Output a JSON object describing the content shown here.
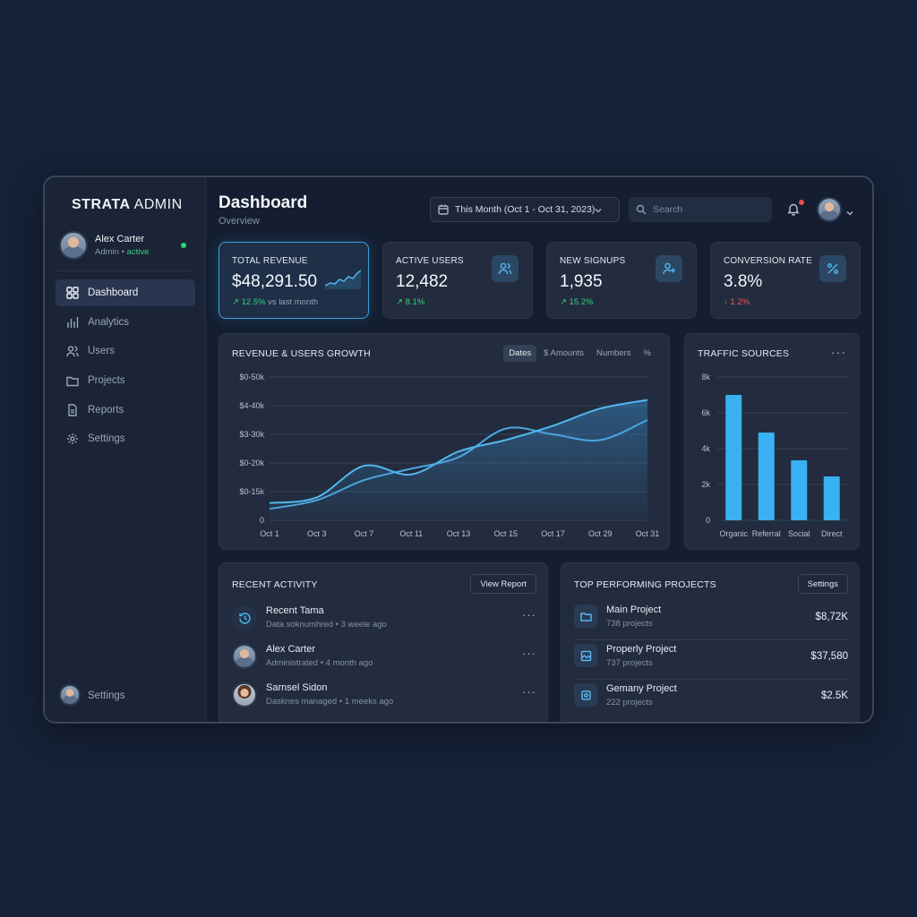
{
  "sidebar": {
    "brand_bold": "STRATA",
    "brand_rest": " ADMIN",
    "user": {
      "name": "Alex Carter",
      "role": "Admin",
      "status": "active"
    },
    "items": [
      {
        "label": "Dashboard",
        "icon": "grid-icon",
        "active": true
      },
      {
        "label": "Analytics",
        "icon": "analytics-icon",
        "active": false
      },
      {
        "label": "Users",
        "icon": "users-icon",
        "active": false
      },
      {
        "label": "Projects",
        "icon": "folder-icon",
        "active": false
      },
      {
        "label": "Reports",
        "icon": "document-icon",
        "active": false
      },
      {
        "label": "Settings",
        "icon": "gear-icon",
        "active": false
      }
    ],
    "bottom_label": "Settings"
  },
  "header": {
    "title": "Dashboard",
    "subtitle": "Overview",
    "date_range": "This Month (Oct 1 - Oct 31, 2023)",
    "search_placeholder": "Search"
  },
  "kpis": [
    {
      "label": "TOTAL REVENUE",
      "value": "$48,291.50",
      "delta": "12.5%",
      "delta_suffix": " vs last month",
      "direction": "up"
    },
    {
      "label": "ACTIVE USERS",
      "value": "12,482",
      "delta": "8.1%",
      "delta_suffix": "",
      "direction": "up",
      "icon": "users-icon"
    },
    {
      "label": "NEW SIGNUPS",
      "value": "1,935",
      "delta": "15.2%",
      "delta_suffix": "",
      "direction": "up",
      "icon": "user-plus-icon"
    },
    {
      "label": "CONVERSION RATE",
      "value": "3.8%",
      "delta": "1.2%",
      "delta_suffix": "",
      "direction": "down",
      "icon": "percent-icon"
    }
  ],
  "growth_panel": {
    "title": "REVENUE & USERS GROWTH",
    "tabs": [
      "Dates",
      "$ Amounts",
      "Numbers",
      "%"
    ],
    "active_tab": "Dates"
  },
  "traffic_panel": {
    "title": "TRAFFIC SOURCES",
    "more": "···"
  },
  "chart_data": [
    {
      "type": "area",
      "x": [
        "Oct 1",
        "Oct 3",
        "Oct 7",
        "Oct 11",
        "Oct 13",
        "Oct 15",
        "Oct 17",
        "Oct 29",
        "Oct 31"
      ],
      "y_tick_labels": [
        "0",
        "$0-15k",
        "$0-20k",
        "$3-30k",
        "$4-40k",
        "$0-50k"
      ],
      "ylim": [
        0,
        50
      ],
      "series": [
        {
          "values": [
            6,
            8,
            19,
            16,
            24,
            28,
            33,
            39,
            42
          ]
        },
        {
          "values": [
            4,
            7,
            14,
            18,
            22,
            32,
            30,
            28,
            35
          ]
        }
      ],
      "colors": [
        "#52b8f0",
        "#4aa6e0"
      ]
    },
    {
      "type": "bar",
      "categories": [
        "Organic",
        "Referral",
        "Social",
        "Direct"
      ],
      "values": [
        7000,
        4900,
        3350,
        2450
      ],
      "y_tick_labels": [
        "0",
        "2k",
        "4k",
        "6k",
        "8k"
      ],
      "ylim": [
        0,
        8000
      ],
      "color": "#39b1f2"
    }
  ],
  "activity": {
    "title": "RECENT ACTIVITY",
    "button": "View Report",
    "items": [
      {
        "title": "Recent Tama",
        "sub": "Data soknumhred • 3 weele ago",
        "kind": "history-icon"
      },
      {
        "title": "Alex Carter",
        "sub": "Administrated • 4 month ago",
        "kind": "avatar"
      },
      {
        "title": "Sarnsel Sidon",
        "sub": "Dasknes managed • 1 meeks ago",
        "kind": "avatar"
      }
    ]
  },
  "projects": {
    "title": "TOP PERFORMING PROJECTS",
    "button": "Settings",
    "items": [
      {
        "name": "Main Project",
        "count": "738 projects",
        "value": "$8,72K",
        "icon": "folder-icon"
      },
      {
        "name": "Properly Project",
        "count": "737 projects",
        "value": "$37,580",
        "icon": "image-icon"
      },
      {
        "name": "Gemany Project",
        "count": "222 projects",
        "value": "$2.5K",
        "icon": "box-icon"
      }
    ]
  }
}
